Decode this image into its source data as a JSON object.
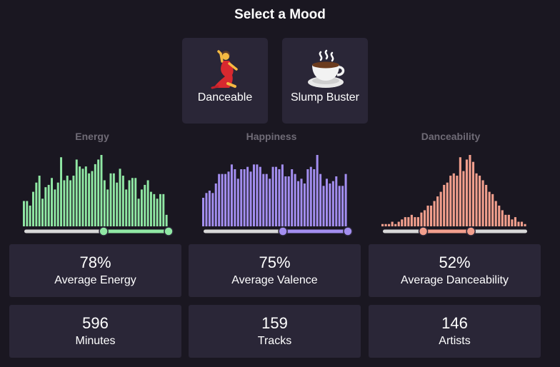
{
  "header": {
    "title": "Select a Mood"
  },
  "moods": [
    {
      "label": "Danceable",
      "icon": "dancer-icon"
    },
    {
      "label": "Slump Buster",
      "icon": "coffee-cup-icon"
    }
  ],
  "histograms": [
    {
      "title": "Energy",
      "color": "#90e8a4",
      "range_start": 0.55,
      "range_end": 1.0,
      "values": [
        11,
        11,
        9,
        15,
        19,
        22,
        12,
        17,
        18,
        21,
        16,
        19,
        30,
        20,
        22,
        20,
        22,
        29,
        26,
        25,
        26,
        23,
        24,
        27,
        29,
        31,
        20,
        16,
        23,
        23,
        19,
        25,
        22,
        16,
        20,
        21,
        21,
        12,
        16,
        18,
        20,
        15,
        14,
        12,
        14,
        14,
        5
      ]
    },
    {
      "title": "Happiness",
      "color": "#a38ef0",
      "range_start": 0.55,
      "range_end": 1.0,
      "values": [
        12,
        14,
        15,
        14,
        18,
        22,
        22,
        22,
        23,
        26,
        24,
        20,
        24,
        24,
        25,
        23,
        26,
        26,
        25,
        22,
        22,
        20,
        25,
        25,
        24,
        26,
        21,
        21,
        24,
        22,
        19,
        20,
        18,
        24,
        25,
        24,
        30,
        22,
        17,
        20,
        18,
        19,
        21,
        17,
        17,
        22
      ]
    },
    {
      "title": "Danceability",
      "color": "#f29f8d",
      "range_start": 0.28,
      "range_end": 0.61,
      "values": [
        1,
        1,
        1,
        2,
        1,
        2,
        3,
        4,
        4,
        5,
        4,
        4,
        6,
        7,
        9,
        9,
        11,
        13,
        15,
        18,
        19,
        22,
        23,
        22,
        30,
        24,
        29,
        31,
        28,
        23,
        22,
        20,
        18,
        15,
        14,
        11,
        9,
        7,
        5,
        5,
        3,
        4,
        2,
        2,
        1
      ]
    }
  ],
  "stats": [
    {
      "value": "78%",
      "label": "Average Energy"
    },
    {
      "value": "75%",
      "label": "Average Valence"
    },
    {
      "value": "52%",
      "label": "Average Danceability"
    },
    {
      "value": "596",
      "label": "Minutes"
    },
    {
      "value": "159",
      "label": "Tracks"
    },
    {
      "value": "146",
      "label": "Artists"
    }
  ]
}
